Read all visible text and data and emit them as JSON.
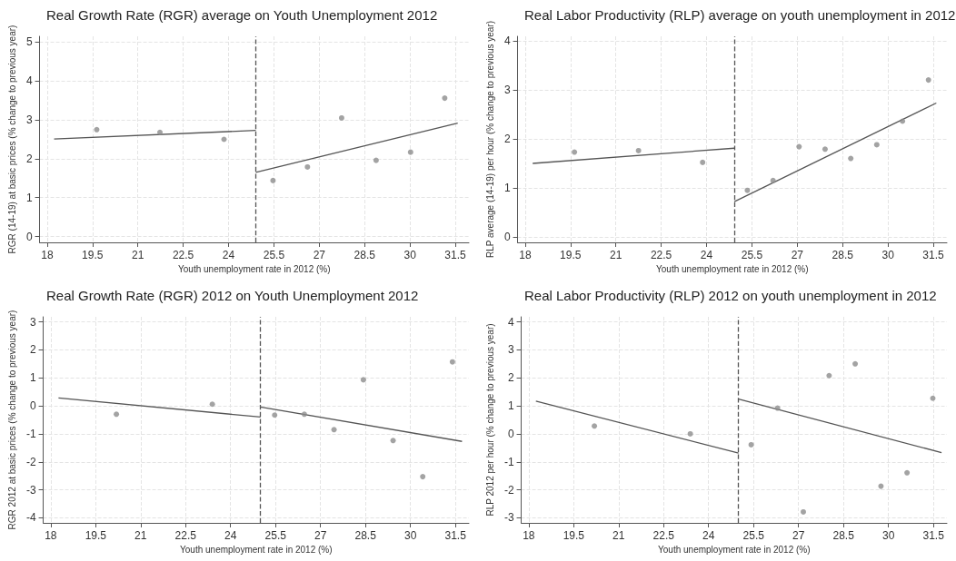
{
  "chart_data": [
    {
      "type": "scatter",
      "title": "Real Growth Rate (RGR) average on Youth Unemployment 2012",
      "xlabel": "Youth unemployment rate in 2012 (%)",
      "ylabel": "RGR (14-19) at basic prices (% change to previous year)",
      "grid": true,
      "marker": "circle",
      "xlim": [
        17.75,
        31.95
      ],
      "xticks": [
        18,
        19.5,
        21,
        22.5,
        24,
        25.5,
        27,
        28.5,
        30,
        31.5
      ],
      "ylim": [
        -0.15,
        5.15
      ],
      "yticks": [
        0,
        1,
        2,
        3,
        4,
        5
      ],
      "ref_lines": [
        {
          "axis": "x",
          "value": 24.9,
          "color": "#555555",
          "line_style": "dashed"
        }
      ],
      "series": [
        {
          "color": "#8c8c8c",
          "x": [
            19.64,
            21.73,
            23.85,
            25.47,
            26.61,
            27.74,
            28.88,
            30.02,
            31.15
          ],
          "values": [
            2.75,
            2.68,
            2.5,
            1.44,
            1.79,
            3.05,
            1.96,
            2.17,
            3.56
          ]
        },
        {
          "type": "line",
          "color": "#555555",
          "marker": "none",
          "x": [
            18.23,
            24.9
          ],
          "values": [
            2.51,
            2.73
          ]
        },
        {
          "type": "line",
          "color": "#555555",
          "marker": "none",
          "x": [
            24.9,
            31.58
          ],
          "values": [
            1.65,
            2.92
          ]
        }
      ]
    },
    {
      "type": "scatter",
      "title": "Real Labor Productivity (RLP) average on youth unemployment in 2012",
      "xlabel": "Youth unemployment rate in 2012 (%)",
      "ylabel": "RLP average (14-19) per hour (% change to previous year)",
      "grid": true,
      "marker": "circle",
      "xlim": [
        17.75,
        31.95
      ],
      "xticks": [
        18,
        19.5,
        21,
        22.5,
        24,
        25.5,
        27,
        28.5,
        30,
        31.5
      ],
      "ylim": [
        -0.11,
        4.09
      ],
      "yticks": [
        0,
        1,
        2,
        3,
        4
      ],
      "ref_lines": [
        {
          "axis": "x",
          "value": 24.92,
          "color": "#555555",
          "line_style": "dashed"
        }
      ],
      "series": [
        {
          "color": "#8c8c8c",
          "x": [
            19.63,
            21.75,
            23.87,
            25.35,
            26.2,
            27.06,
            27.92,
            28.77,
            29.63,
            30.48,
            31.34
          ],
          "values": [
            1.73,
            1.76,
            1.52,
            0.95,
            1.15,
            1.84,
            1.79,
            1.6,
            1.88,
            2.36,
            3.2
          ]
        },
        {
          "type": "line",
          "color": "#555555",
          "marker": "none",
          "x": [
            18.25,
            24.92
          ],
          "values": [
            1.5,
            1.81
          ]
        },
        {
          "type": "line",
          "color": "#555555",
          "marker": "none",
          "x": [
            24.92,
            31.6
          ],
          "values": [
            0.72,
            2.73
          ]
        }
      ]
    },
    {
      "type": "scatter",
      "title": "Real Growth Rate (RGR) 2012 on Youth Unemployment 2012",
      "xlabel": "Youth unemployment rate in 2012 (%)",
      "ylabel": "RGR 2012 at basic prices (% change to previous year)",
      "grid": true,
      "marker": "circle",
      "xlim": [
        17.75,
        31.95
      ],
      "xticks": [
        18,
        19.5,
        21,
        22.5,
        24,
        25.5,
        27,
        28.5,
        30,
        31.5
      ],
      "ylim": [
        -4.18,
        3.18
      ],
      "yticks": [
        -4,
        -3,
        -2,
        -1,
        0,
        1,
        2,
        3
      ],
      "ref_lines": [
        {
          "axis": "x",
          "value": 25.0,
          "color": "#555555",
          "line_style": "dashed"
        }
      ],
      "series": [
        {
          "color": "#8c8c8c",
          "x": [
            20.19,
            23.39,
            25.47,
            26.46,
            27.45,
            28.43,
            29.42,
            30.41,
            31.4
          ],
          "values": [
            -0.3,
            0.06,
            -0.33,
            -0.3,
            -0.85,
            0.93,
            -1.24,
            -2.53,
            1.57
          ]
        },
        {
          "type": "line",
          "color": "#555555",
          "marker": "none",
          "x": [
            18.26,
            25.0
          ],
          "values": [
            0.28,
            -0.4
          ]
        },
        {
          "type": "line",
          "color": "#555555",
          "marker": "none",
          "x": [
            25.0,
            31.72
          ],
          "values": [
            -0.04,
            -1.27
          ]
        }
      ]
    },
    {
      "type": "scatter",
      "title": "Real Labor Productivity (RLP) 2012 on youth unemployment in 2012",
      "xlabel": "Youth unemployment rate in 2012 (%)",
      "ylabel": "RLP 2012 per hour (% change to previous year)",
      "grid": true,
      "marker": "circle",
      "xlim": [
        17.75,
        31.95
      ],
      "xticks": [
        18,
        19.5,
        21,
        22.5,
        24,
        25.5,
        27,
        28.5,
        30,
        31.5
      ],
      "ylim": [
        -3.18,
        4.18
      ],
      "yticks": [
        -3,
        -2,
        -1,
        0,
        1,
        2,
        3,
        4
      ],
      "ref_lines": [
        {
          "axis": "x",
          "value": 25.0,
          "color": "#555555",
          "line_style": "dashed"
        }
      ],
      "series": [
        {
          "color": "#8c8c8c",
          "x": [
            20.19,
            23.39,
            25.42,
            26.3,
            27.16,
            28.02,
            28.89,
            29.75,
            30.62,
            31.48
          ],
          "values": [
            0.28,
            0.0,
            -0.39,
            0.92,
            -2.79,
            2.08,
            2.5,
            -1.87,
            -1.39,
            1.27
          ]
        },
        {
          "type": "line",
          "color": "#555555",
          "marker": "none",
          "x": [
            18.24,
            25.0
          ],
          "values": [
            1.17,
            -0.69
          ]
        },
        {
          "type": "line",
          "color": "#555555",
          "marker": "none",
          "x": [
            25.0,
            31.77
          ],
          "values": [
            1.24,
            -0.67
          ]
        }
      ]
    }
  ]
}
